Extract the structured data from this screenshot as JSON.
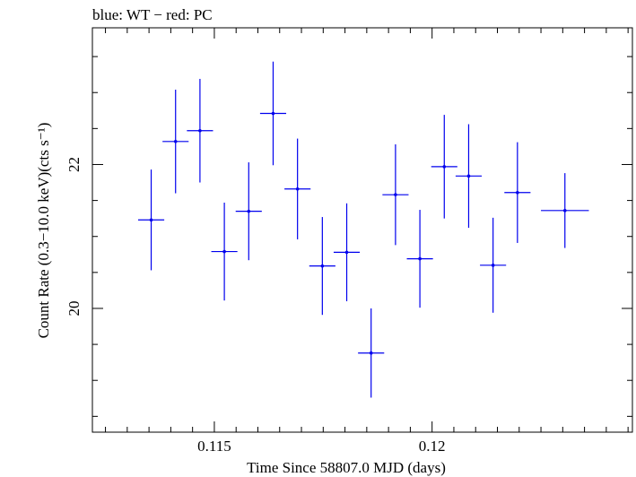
{
  "chart_data": {
    "type": "scatter",
    "title": "blue: WT − red: PC",
    "xlabel": "Time Since 58807.0 MJD (days)",
    "ylabel": "Count Rate (0.3−10.0 keV)(cts s⁻¹)",
    "xlim": [
      0.1122,
      0.1246
    ],
    "ylim": [
      18.28,
      23.9
    ],
    "x_major_ticks": [
      0.115,
      0.12
    ],
    "x_tick_labels": [
      "0.115",
      "0.12"
    ],
    "x_minor_step": 0.0005,
    "y_major_ticks": [
      20,
      22
    ],
    "y_tick_labels": [
      "20",
      "22"
    ],
    "y_minor_step": 0.5,
    "grid": false,
    "colors": {
      "WT": "#0000ee",
      "axes": "#000000"
    },
    "series": [
      {
        "name": "WT",
        "color": "#0000ee",
        "points": [
          {
            "x": 0.11355,
            "xerr": 0.0003,
            "y": 21.23,
            "yerr": 0.7
          },
          {
            "x": 0.11411,
            "xerr": 0.0003,
            "y": 22.32,
            "yerr": 0.72
          },
          {
            "x": 0.11467,
            "xerr": 0.0003,
            "y": 22.47,
            "yerr": 0.72
          },
          {
            "x": 0.11523,
            "xerr": 0.0003,
            "y": 20.79,
            "yerr": 0.68
          },
          {
            "x": 0.11579,
            "xerr": 0.0003,
            "y": 21.35,
            "yerr": 0.68
          },
          {
            "x": 0.11635,
            "xerr": 0.0003,
            "y": 22.71,
            "yerr": 0.72
          },
          {
            "x": 0.11691,
            "xerr": 0.0003,
            "y": 21.66,
            "yerr": 0.7
          },
          {
            "x": 0.11748,
            "xerr": 0.0003,
            "y": 20.59,
            "yerr": 0.68
          },
          {
            "x": 0.11804,
            "xerr": 0.0003,
            "y": 20.78,
            "yerr": 0.68
          },
          {
            "x": 0.1186,
            "xerr": 0.0003,
            "y": 19.38,
            "yerr": 0.62
          },
          {
            "x": 0.11916,
            "xerr": 0.0003,
            "y": 21.58,
            "yerr": 0.7
          },
          {
            "x": 0.11972,
            "xerr": 0.0003,
            "y": 20.69,
            "yerr": 0.68
          },
          {
            "x": 0.12028,
            "xerr": 0.0003,
            "y": 21.97,
            "yerr": 0.72
          },
          {
            "x": 0.12084,
            "xerr": 0.0003,
            "y": 21.84,
            "yerr": 0.72
          },
          {
            "x": 0.1214,
            "xerr": 0.0003,
            "y": 20.6,
            "yerr": 0.66
          },
          {
            "x": 0.12196,
            "xerr": 0.0003,
            "y": 21.61,
            "yerr": 0.7
          },
          {
            "x": 0.12305,
            "xerr": 0.00055,
            "y": 21.36,
            "yerr": 0.52
          }
        ]
      }
    ]
  }
}
